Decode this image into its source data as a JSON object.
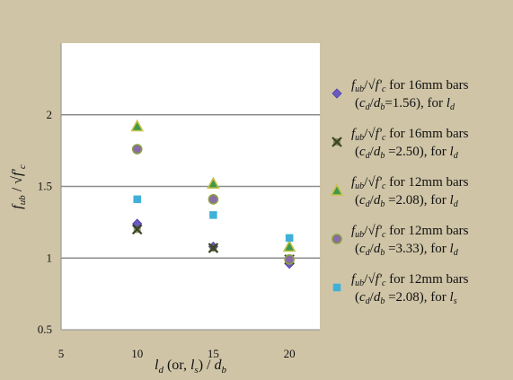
{
  "chart_data": {
    "type": "scatter",
    "xlim": [
      5,
      22
    ],
    "ylim": [
      0.5,
      2.5
    ],
    "x_ticks": [
      5,
      10,
      15,
      20
    ],
    "y_ticks": [
      0.5,
      1,
      1.5,
      2
    ],
    "x_tick_labels": [
      "5",
      "10",
      "15",
      "20"
    ],
    "y_tick_labels": [
      "0.5",
      "1",
      "1.5",
      "2"
    ],
    "xlabel": {
      "p1": "l",
      "s1": "d",
      "p2": " (or, ",
      "p3": "l",
      "s3": "s",
      "p4": ") / ",
      "p5": "d",
      "s5": "b"
    },
    "ylabel": {
      "p1": "f",
      "s1": "ub",
      "p2": " / √",
      "p3": "f'",
      "s3": "c"
    },
    "grid": "horizontal",
    "legend_position": "right",
    "series": [
      {
        "marker": "diamond",
        "color": "#6a5bc4",
        "stroke": "#4a3ea0",
        "label_line1": {
          "p1": "f",
          "s1": "ub",
          "p2": "/√",
          "p3": "f'",
          "s3": "c",
          "p4": " for 16mm bars"
        },
        "label_line2": {
          "p1": "(",
          "p2": "c",
          "s2": "d",
          "p3": "/",
          "p4": "d",
          "s4": "b",
          "p5": "=1.56), for ",
          "p6": "l",
          "s6": "d"
        },
        "points": [
          {
            "x": 10,
            "y": 1.24
          },
          {
            "x": 15,
            "y": 1.08
          },
          {
            "x": 20,
            "y": 0.96
          }
        ]
      },
      {
        "marker": "x-star",
        "color": "#4b5a2a",
        "stroke": "#3a4420",
        "label_line1": {
          "p1": "f",
          "s1": "ub",
          "p2": "/√",
          "p3": "f'",
          "s3": "c",
          "p4": " for 16mm bars"
        },
        "label_line2": {
          "p1": "(",
          "p2": "c",
          "s2": "d",
          "p3": "/",
          "p4": "d",
          "s4": "b",
          "p5": " =2.50), for ",
          "p6": "l",
          "s6": "d"
        },
        "points": [
          {
            "x": 10,
            "y": 1.2
          },
          {
            "x": 15,
            "y": 1.07
          },
          {
            "x": 20,
            "y": 0.99
          }
        ]
      },
      {
        "marker": "triangle",
        "color": "#3e9a4a",
        "stroke": "#c8c24a",
        "label_line1": {
          "p1": "f",
          "s1": "ub",
          "p2": "/√",
          "p3": "f'",
          "s3": "c",
          "p4": " for 12mm bars"
        },
        "label_line2": {
          "p1": "(",
          "p2": "c",
          "s2": "d",
          "p3": "/",
          "p4": "d",
          "s4": "b",
          "p5": " =2.08), for ",
          "p6": "l",
          "s6": "d"
        },
        "points": [
          {
            "x": 10,
            "y": 1.92
          },
          {
            "x": 15,
            "y": 1.52
          },
          {
            "x": 20,
            "y": 1.08
          }
        ]
      },
      {
        "marker": "circle",
        "color": "#8a6aa8",
        "stroke": "#8aa040",
        "label_line1": {
          "p1": "f",
          "s1": "ub",
          "p2": "/√",
          "p3": "f'",
          "s3": "c",
          "p4": " for 12mm bars"
        },
        "label_line2": {
          "p1": "(",
          "p2": "c",
          "s2": "d",
          "p3": "/",
          "p4": "d",
          "s4": "b",
          "p5": " =3.33), for ",
          "p6": "l",
          "s6": "d"
        },
        "points": [
          {
            "x": 10,
            "y": 1.76
          },
          {
            "x": 15,
            "y": 1.41
          },
          {
            "x": 20,
            "y": 0.99
          }
        ]
      },
      {
        "marker": "square",
        "color": "#3fb0d8",
        "stroke": "#3fb0d8",
        "label_line1": {
          "p1": "f",
          "s1": "ub",
          "p2": "/√",
          "p3": "f'",
          "s3": "c",
          "p4": " for 12mm bars"
        },
        "label_line2": {
          "p1": "(",
          "p2": "c",
          "s2": "d",
          "p3": "/",
          "p4": "d",
          "s4": "b",
          "p5": " =2.08), for ",
          "p6": "l",
          "s6": "s"
        },
        "points": [
          {
            "x": 10,
            "y": 1.41
          },
          {
            "x": 15,
            "y": 1.3
          },
          {
            "x": 20,
            "y": 1.14
          }
        ]
      }
    ]
  }
}
